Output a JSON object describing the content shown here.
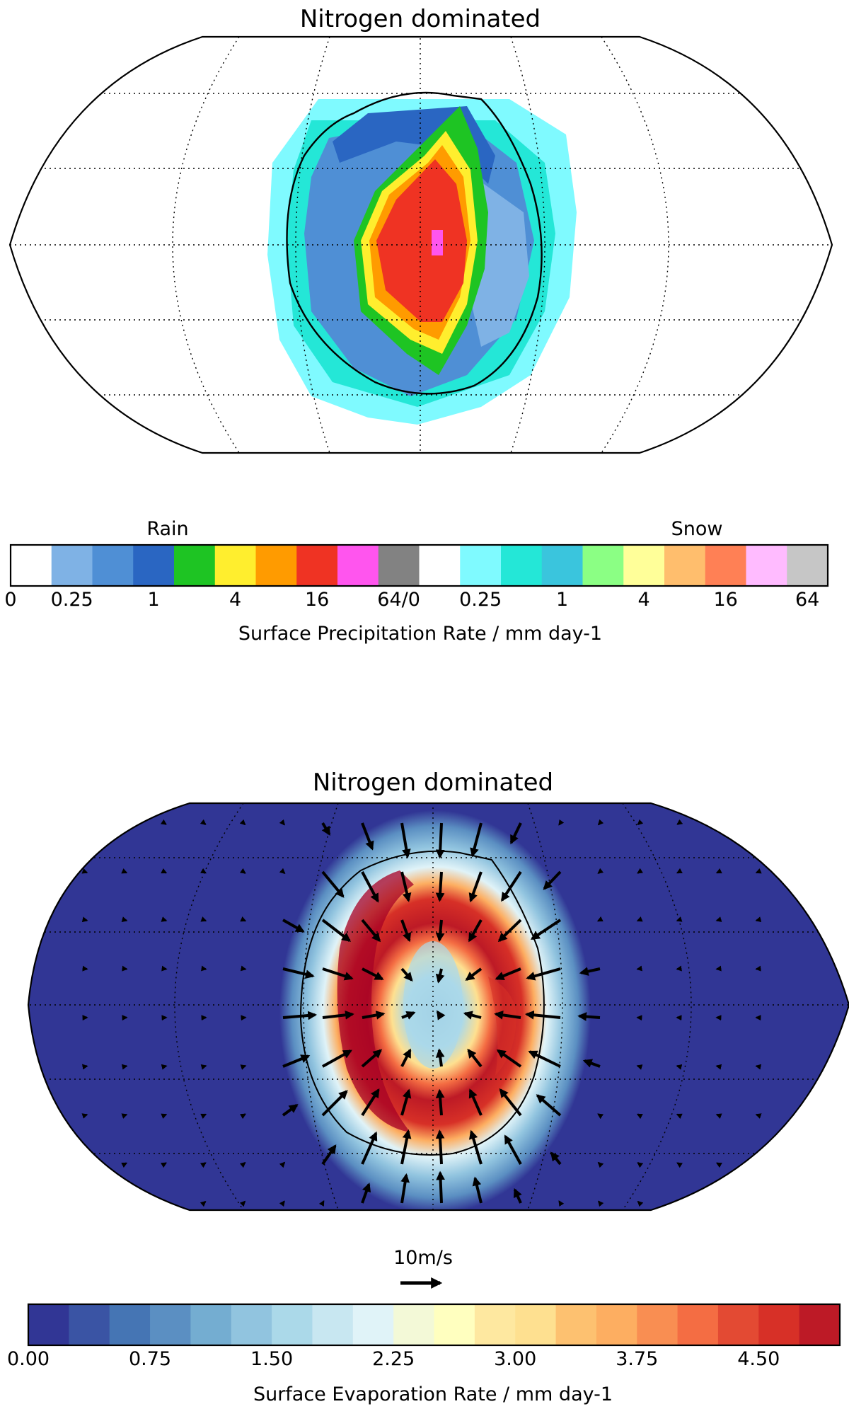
{
  "chart_data": [
    {
      "type": "heatmap",
      "projection": "Robinson (global, day-side centred)",
      "title": "Nitrogen dominated",
      "variable": "Surface Precipitation Rate",
      "units": "mm day-1",
      "colorbar": {
        "label": "Surface Precipitation Rate / mm day-1",
        "groups": [
          {
            "name": "Rain",
            "colors": [
              "#ffffff",
              "#7fb2e5",
              "#4f8fd5",
              "#2a66c2",
              "#1ec423",
              "#ffee2e",
              "#ff9b00",
              "#ef3323",
              "#ff55ee",
              "#828282"
            ]
          },
          {
            "name": "Snow",
            "colors": [
              "#ffffff",
              "#7ffaff",
              "#24e7d7",
              "#3ac5dd",
              "#8bff84",
              "#ffff99",
              "#ffbe6d",
              "#ff8055",
              "#ffbbff",
              "#c6c6c6"
            ]
          }
        ],
        "tick_labels": [
          "0",
          "0.25",
          "1",
          "4",
          "16",
          "64/0",
          "0.25",
          "1",
          "4",
          "16",
          "64"
        ],
        "tick_bins": [
          0,
          1.5,
          3.5,
          5.5,
          7.5,
          9.5,
          11.5,
          13.5,
          15.5,
          17.5,
          19.5
        ]
      },
      "features": [
        {
          "region": "substellar core",
          "phase": "rain",
          "range": "16-64 mm day-1"
        },
        {
          "region": "inner ring",
          "phase": "rain",
          "range": "1-16 mm day-1"
        },
        {
          "region": "outer ring",
          "phase": "snow",
          "range": "0-1 mm day-1"
        }
      ],
      "contour": "single closed contour around substellar point"
    },
    {
      "type": "heatmap",
      "projection": "Robinson (global, day-side centred)",
      "title": "Nitrogen dominated",
      "variable": "Surface Evaporation Rate",
      "units": "mm day-1",
      "vector_overlay": {
        "quantity": "surface wind",
        "reference_label": "10m/s",
        "reference_speed_ms": 10
      },
      "colorbar": {
        "label": "Surface Evaporation Rate / mm day-1",
        "levels": [
          0.0,
          0.25,
          0.5,
          0.75,
          1.0,
          1.25,
          1.5,
          1.75,
          2.0,
          2.25,
          2.5,
          2.75,
          3.0,
          3.25,
          3.5,
          3.75,
          4.0,
          4.25,
          4.5,
          4.75,
          5.0
        ],
        "colors": [
          "#313695",
          "#3a54a4",
          "#4575b4",
          "#5b8fc2",
          "#74add1",
          "#91c4df",
          "#abd9e9",
          "#c8e7f1",
          "#e0f3f8",
          "#f3f9d7",
          "#ffffbf",
          "#fee8a0",
          "#fee090",
          "#fdc170",
          "#fdae61",
          "#f98e52",
          "#f46d43",
          "#e34a33",
          "#d73027",
          "#bd1a26",
          "#a50026"
        ],
        "tick_values": [
          0.0,
          0.75,
          1.5,
          2.25,
          3.0,
          3.75,
          4.5
        ],
        "tick_labels": [
          "0.00",
          "0.75",
          "1.50",
          "2.25",
          "3.00",
          "3.75",
          "4.50"
        ]
      },
      "features": [
        {
          "region": "substellar interior",
          "approx_value": 1.3
        },
        {
          "region": "crescent ring (west)",
          "approx_value": 4.9
        },
        {
          "region": "crescent ring (east)",
          "approx_value": 4.0
        },
        {
          "region": "night side / far field",
          "approx_value": 0.0
        }
      ],
      "contour": "single closed contour around substellar point"
    }
  ]
}
